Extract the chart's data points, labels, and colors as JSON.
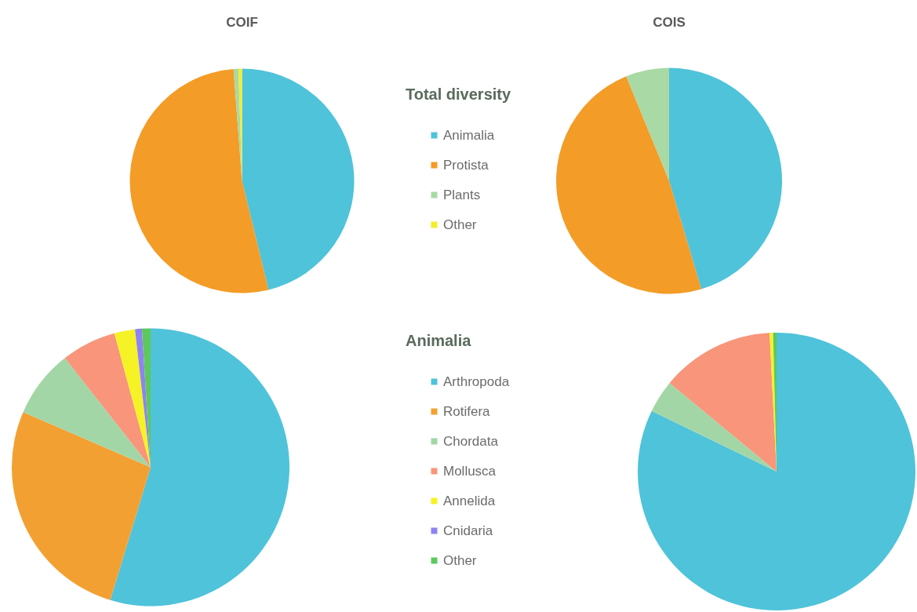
{
  "chart_data": [
    {
      "type": "pie",
      "legend_title": "Total diversity",
      "legend": "right",
      "categories": [
        "Animalia",
        "Protista",
        "Plants",
        "Other"
      ],
      "colors": [
        "#4fc3d9",
        "#f39c27",
        "#a9d9a5",
        "#f2ee2a"
      ],
      "series": [
        {
          "name": "COIF",
          "values": [
            46.2,
            52.6,
            0.7,
            0.5
          ]
        },
        {
          "name": "COIS",
          "values": [
            45.4,
            48.4,
            6.2,
            null
          ]
        }
      ]
    },
    {
      "type": "pie",
      "legend_title": "Animalia",
      "legend": "right",
      "categories": [
        "Arthropoda",
        "Rotifera",
        "Chordata",
        "Mollusca",
        "Annelida",
        "Cnidaria",
        "Other"
      ],
      "colors": [
        "#4fc3d9",
        "#f3a033",
        "#a3d6a6",
        "#f8957a",
        "#f5f226",
        "#8f83f3",
        "#5ec85e"
      ],
      "series": [
        {
          "values": [
            54.7,
            26.8,
            7.9,
            6.4,
            2.4,
            0.8,
            1.0
          ]
        },
        {
          "values": [
            82.2,
            null,
            3.8,
            13.2,
            0.4,
            null,
            0.4
          ]
        }
      ]
    }
  ]
}
